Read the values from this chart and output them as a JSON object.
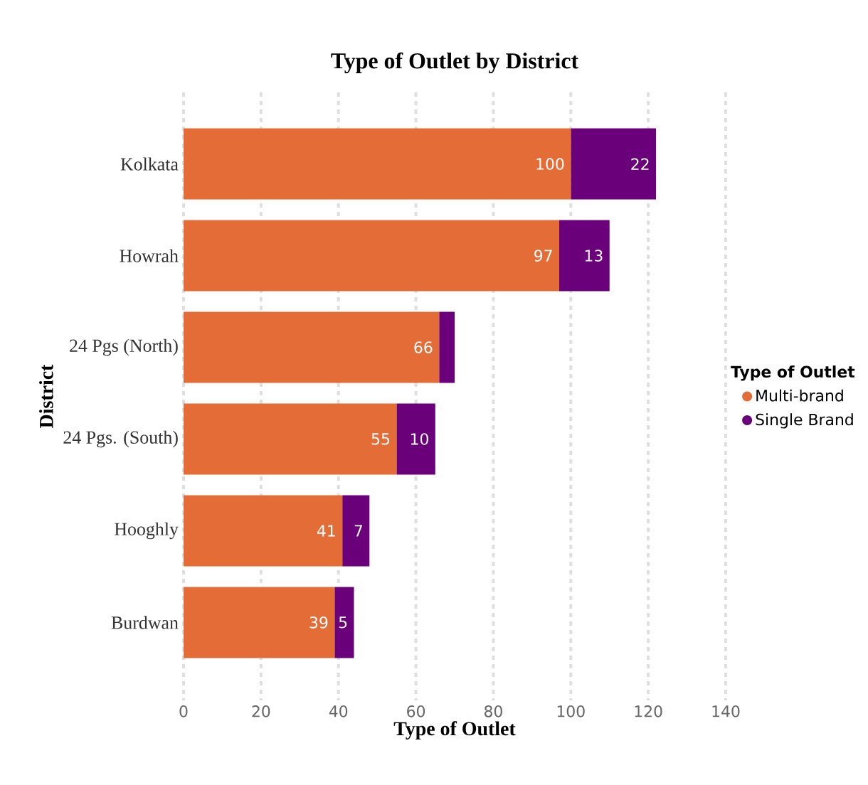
{
  "chart_data": {
    "type": "bar",
    "orientation": "horizontal",
    "stacked": true,
    "title": "Type of Outlet by District",
    "xlabel": "Type of Outlet",
    "ylabel": "District",
    "legend_title": "Type of Outlet",
    "categories": [
      "Kolkata",
      "Howrah",
      "24 Pgs (North)",
      "24 Pgs. (South)",
      "Hooghly",
      "Burdwan"
    ],
    "series": [
      {
        "name": "Multi-brand",
        "color": "#e46c37",
        "values": [
          100,
          97,
          66,
          55,
          41,
          39
        ],
        "value_labels": [
          "100",
          "97",
          "66",
          "55",
          "41",
          "39"
        ]
      },
      {
        "name": "Single Brand",
        "color": "#6b007b",
        "values": [
          22,
          13,
          4,
          10,
          7,
          5
        ],
        "value_labels": [
          "22",
          "13",
          null,
          "10",
          "7",
          "5"
        ]
      }
    ],
    "xlim": [
      0,
      140
    ],
    "xticks": [
      0,
      20,
      40,
      60,
      80,
      100,
      120,
      140
    ],
    "grid": "x",
    "legend": "right"
  }
}
